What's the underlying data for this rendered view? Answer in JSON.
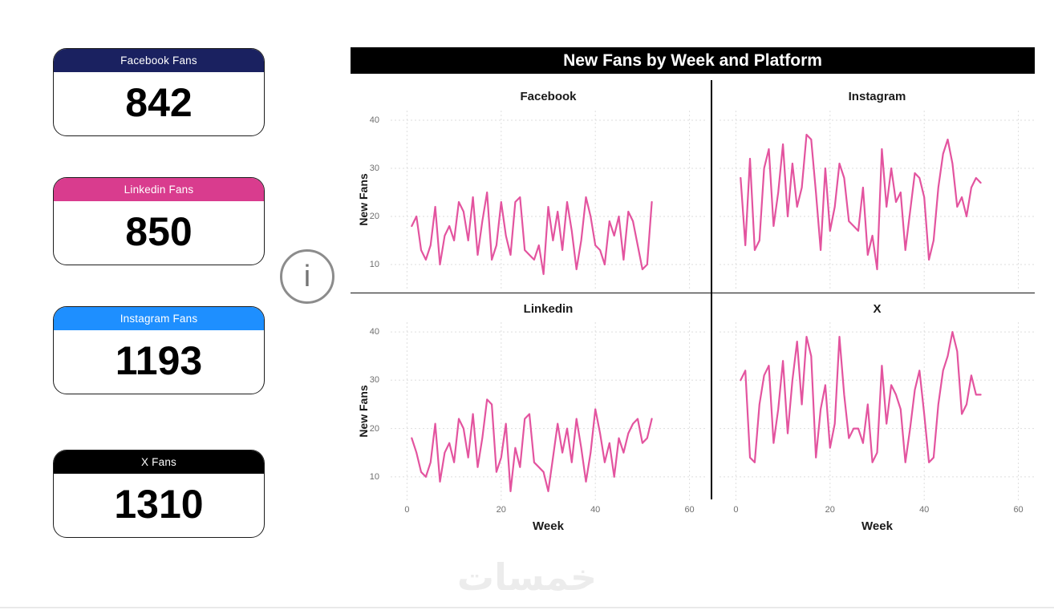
{
  "page": {
    "background": "#ffffff"
  },
  "cards": [
    {
      "label": "Facebook Fans",
      "value": "842",
      "header_color": "#1A2160"
    },
    {
      "label": "Linkedin Fans",
      "value": "850",
      "header_color": "#D93C8E"
    },
    {
      "label": "Instagram Fans",
      "value": "1193",
      "header_color": "#1E8FFF"
    },
    {
      "label": "X Fans",
      "value": "1310",
      "header_color": "#000000"
    }
  ],
  "info_button": {
    "label": "i"
  },
  "watermark": {
    "text": "خمسات"
  },
  "chart_data": {
    "type": "line",
    "title": "New Fans by Week and Platform",
    "xlabel": "Week",
    "ylabel": "New Fans",
    "x_start": 1,
    "xlim": [
      0,
      60
    ],
    "ylim": [
      5,
      42
    ],
    "xticks": [
      0,
      20,
      40,
      60
    ],
    "yticks": [
      10,
      20,
      30,
      40
    ],
    "grid": true,
    "legend": "none",
    "line_color": "#E3549F",
    "facets": [
      {
        "name": "Facebook",
        "values": [
          18,
          20,
          13,
          11,
          14,
          22,
          10,
          16,
          18,
          15,
          23,
          21,
          15,
          24,
          12,
          19,
          25,
          11,
          14,
          23,
          16,
          12,
          23,
          24,
          13,
          12,
          11,
          14,
          8,
          22,
          15,
          21,
          13,
          23,
          17,
          9,
          15,
          24,
          20,
          14,
          13,
          10,
          19,
          16,
          20,
          11,
          21,
          19,
          14,
          9,
          10,
          23
        ]
      },
      {
        "name": "Instagram",
        "values": [
          28,
          14,
          32,
          13,
          15,
          30,
          34,
          18,
          25,
          35,
          20,
          31,
          22,
          26,
          37,
          36,
          25,
          13,
          30,
          17,
          22,
          31,
          28,
          19,
          18,
          17,
          26,
          12,
          16,
          9,
          34,
          22,
          30,
          23,
          25,
          13,
          21,
          29,
          28,
          24,
          11,
          15,
          26,
          33,
          36,
          31,
          22,
          24,
          20,
          26,
          28,
          27
        ]
      },
      {
        "name": "Linkedin",
        "values": [
          18,
          15,
          11,
          10,
          13,
          21,
          9,
          15,
          17,
          13,
          22,
          20,
          14,
          23,
          12,
          18,
          26,
          25,
          11,
          14,
          21,
          7,
          16,
          12,
          22,
          23,
          13,
          12,
          11,
          7,
          14,
          21,
          15,
          20,
          13,
          22,
          16,
          9,
          15,
          24,
          19,
          13,
          17,
          10,
          18,
          15,
          19,
          21,
          22,
          17,
          18,
          22
        ]
      },
      {
        "name": "X",
        "values": [
          30,
          32,
          14,
          13,
          25,
          31,
          33,
          17,
          24,
          34,
          19,
          30,
          38,
          25,
          39,
          35,
          14,
          24,
          29,
          16,
          21,
          39,
          27,
          18,
          20,
          20,
          17,
          25,
          13,
          15,
          33,
          21,
          29,
          27,
          24,
          13,
          20,
          28,
          32,
          23,
          13,
          14,
          25,
          32,
          35,
          40,
          36,
          23,
          25,
          31,
          27,
          27
        ]
      }
    ]
  }
}
